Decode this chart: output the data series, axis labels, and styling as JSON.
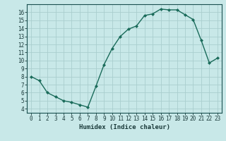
{
  "x": [
    0,
    1,
    2,
    3,
    4,
    5,
    6,
    7,
    8,
    9,
    10,
    11,
    12,
    13,
    14,
    15,
    16,
    17,
    18,
    19,
    20,
    21,
    22,
    23
  ],
  "y": [
    8.0,
    7.5,
    6.0,
    5.5,
    5.0,
    4.8,
    4.5,
    4.2,
    6.8,
    9.5,
    11.5,
    13.0,
    13.9,
    14.3,
    15.6,
    15.8,
    16.4,
    16.3,
    16.3,
    15.7,
    15.1,
    12.5,
    9.7,
    10.3
  ],
  "line_color": "#1a6b5a",
  "marker": "D",
  "marker_size": 2.0,
  "bg_color": "#c8e8e8",
  "grid_color": "#aacece",
  "axis_color": "#1a5050",
  "text_color": "#1a3a3a",
  "xlabel": "Humidex (Indice chaleur)",
  "xlim": [
    -0.5,
    23.5
  ],
  "ylim": [
    3.5,
    17.0
  ],
  "xticks": [
    0,
    1,
    2,
    3,
    4,
    5,
    6,
    7,
    8,
    9,
    10,
    11,
    12,
    13,
    14,
    15,
    16,
    17,
    18,
    19,
    20,
    21,
    22,
    23
  ],
  "yticks": [
    4,
    5,
    6,
    7,
    8,
    9,
    10,
    11,
    12,
    13,
    14,
    15,
    16
  ],
  "tick_fontsize": 5.5,
  "label_fontsize": 6.5
}
